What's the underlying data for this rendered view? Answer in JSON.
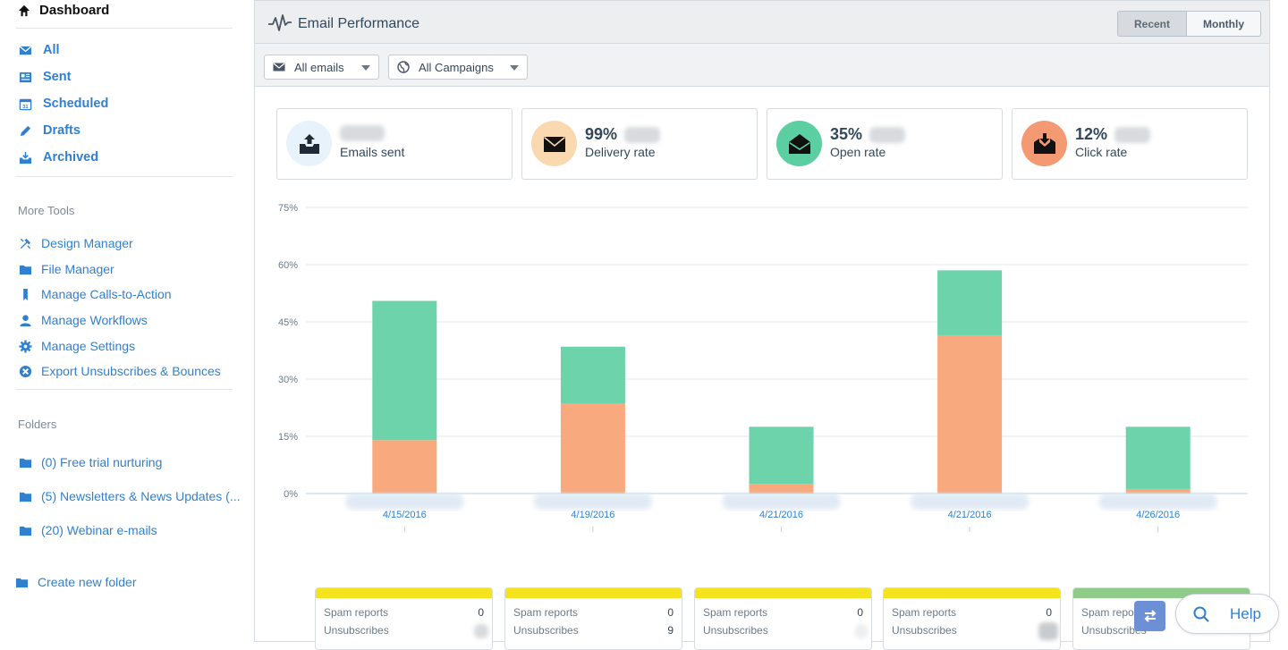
{
  "sidebar": {
    "home_label": "Dashboard",
    "mail_items": [
      {
        "label": "All",
        "icon": "envelope-icon"
      },
      {
        "label": "Sent",
        "icon": "newspaper-icon"
      },
      {
        "label": "Scheduled",
        "icon": "calendar-icon"
      },
      {
        "label": "Drafts",
        "icon": "pencil-icon"
      },
      {
        "label": "Archived",
        "icon": "archive-icon"
      }
    ],
    "more_tools_heading": "More Tools",
    "tools": [
      {
        "label": "Design Manager",
        "icon": "tools-icon"
      },
      {
        "label": "File Manager",
        "icon": "folder-icon"
      },
      {
        "label": "Manage Calls-to-Action",
        "icon": "bookmark-icon"
      },
      {
        "label": "Manage Workflows",
        "icon": "user-icon"
      },
      {
        "label": "Manage Settings",
        "icon": "gear-icon"
      },
      {
        "label": "Export Unsubscribes & Bounces",
        "icon": "x-circle-icon"
      }
    ],
    "folders_heading": "Folders",
    "folders": [
      {
        "label": "(0) Free trial nurturing"
      },
      {
        "label": "(5) Newsletters & News Updates (..."
      },
      {
        "label": "(20) Webinar e-mails"
      }
    ],
    "create_folder": "Create new folder"
  },
  "panel": {
    "title": "Email Performance",
    "toggle_recent": "Recent",
    "toggle_monthly": "Monthly",
    "filter_emails": "All emails",
    "filter_campaigns": "All Campaigns"
  },
  "stats": [
    {
      "value": "",
      "label": "Emails sent",
      "color": "#e8f2fb",
      "icon": "inbox-upload-icon"
    },
    {
      "value": "99%",
      "label": "Delivery rate",
      "color": "#fbd9b0",
      "icon": "envelope-closed-icon"
    },
    {
      "value": "35%",
      "label": "Open rate",
      "color": "#5ccfa2",
      "icon": "envelope-open-icon"
    },
    {
      "value": "12%",
      "label": "Click rate",
      "color": "#f49a72",
      "icon": "envelope-download-icon"
    }
  ],
  "chart_data": {
    "type": "bar",
    "stacked": true,
    "categories": [
      "4/15/2016",
      "4/19/2016",
      "4/21/2016",
      "4/21/2016",
      "4/26/2016"
    ],
    "series": [
      {
        "color": "#f8a97e",
        "values": [
          14,
          23.5,
          2.5,
          41.5,
          1.2
        ]
      },
      {
        "color": "#6dd3aa",
        "values": [
          36.5,
          15,
          15,
          17,
          16.3
        ]
      }
    ],
    "y_ticks": [
      "75%",
      "60%",
      "45%",
      "30%",
      "15%",
      "0%"
    ],
    "ylim": [
      0,
      75
    ],
    "grid": true
  },
  "email_stats": [
    {
      "spam_label": "Spam reports",
      "spam": "0",
      "unsub_label": "Unsubscribes",
      "unsub": ""
    },
    {
      "spam_label": "Spam reports",
      "spam": "0",
      "unsub_label": "Unsubscribes",
      "unsub": "9"
    },
    {
      "spam_label": "Spam reports",
      "spam": "0",
      "unsub_label": "Unsubscribes",
      "unsub": ""
    },
    {
      "spam_label": "Spam reports",
      "spam": "0",
      "unsub_label": "Unsubscribes",
      "unsub": ""
    },
    {
      "spam_label": "Spam repor",
      "spam": "",
      "unsub_label": "Unsubscribes",
      "unsub": ""
    }
  ],
  "help": {
    "label": "Help"
  }
}
